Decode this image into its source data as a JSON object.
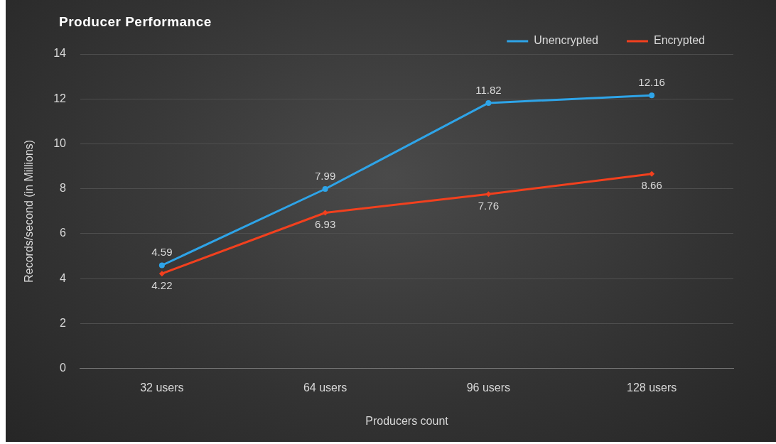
{
  "chart_data": {
    "type": "line",
    "title": "Producer Performance",
    "xlabel": "Producers count",
    "ylabel": "Records/second (in Millions)",
    "categories": [
      "32 users",
      "64 users",
      "96 users",
      "128 users"
    ],
    "series": [
      {
        "name": "Unencrypted",
        "color": "#2ea4e8",
        "marker": "circle",
        "values": [
          4.59,
          7.99,
          11.82,
          12.16
        ]
      },
      {
        "name": "Encrypted",
        "color": "#f2401e",
        "marker": "diamond",
        "values": [
          4.22,
          6.93,
          7.76,
          8.66
        ]
      }
    ],
    "ylim": [
      0,
      14
    ],
    "yticks": [
      0,
      2,
      4,
      6,
      8,
      10,
      12,
      14
    ],
    "grid": "y",
    "legend": "top right",
    "data_labels": true,
    "line_style": "solid"
  }
}
